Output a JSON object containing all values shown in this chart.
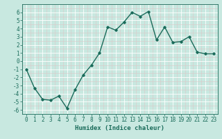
{
  "x": [
    0,
    1,
    2,
    3,
    4,
    5,
    6,
    7,
    8,
    9,
    10,
    11,
    12,
    13,
    14,
    15,
    16,
    17,
    18,
    19,
    20,
    21,
    22,
    23
  ],
  "y": [
    -1,
    -3.3,
    -4.7,
    -4.8,
    -4.3,
    -5.8,
    -3.5,
    -1.7,
    -0.5,
    1.0,
    4.2,
    3.8,
    4.8,
    6.0,
    5.5,
    6.1,
    2.6,
    4.2,
    2.3,
    2.4,
    3.0,
    1.1,
    0.9,
    0.9
  ],
  "xlim": [
    -0.5,
    23.5
  ],
  "ylim": [
    -6.5,
    7.0
  ],
  "yticks": [
    -6,
    -5,
    -4,
    -3,
    -2,
    -1,
    0,
    1,
    2,
    3,
    4,
    5,
    6
  ],
  "xticks": [
    0,
    1,
    2,
    3,
    4,
    5,
    6,
    7,
    8,
    9,
    10,
    11,
    12,
    13,
    14,
    15,
    16,
    17,
    18,
    19,
    20,
    21,
    22,
    23
  ],
  "xlabel": "Humidex (Indice chaleur)",
  "line_color": "#1a6b5a",
  "marker": "D",
  "marker_size": 1.8,
  "linewidth": 1.0,
  "bg_color": "#c8e8e0",
  "grid_major_color": "#ffffff",
  "grid_minor_color": "#ddc8c8",
  "xlabel_fontsize": 6.5,
  "tick_fontsize": 5.5
}
